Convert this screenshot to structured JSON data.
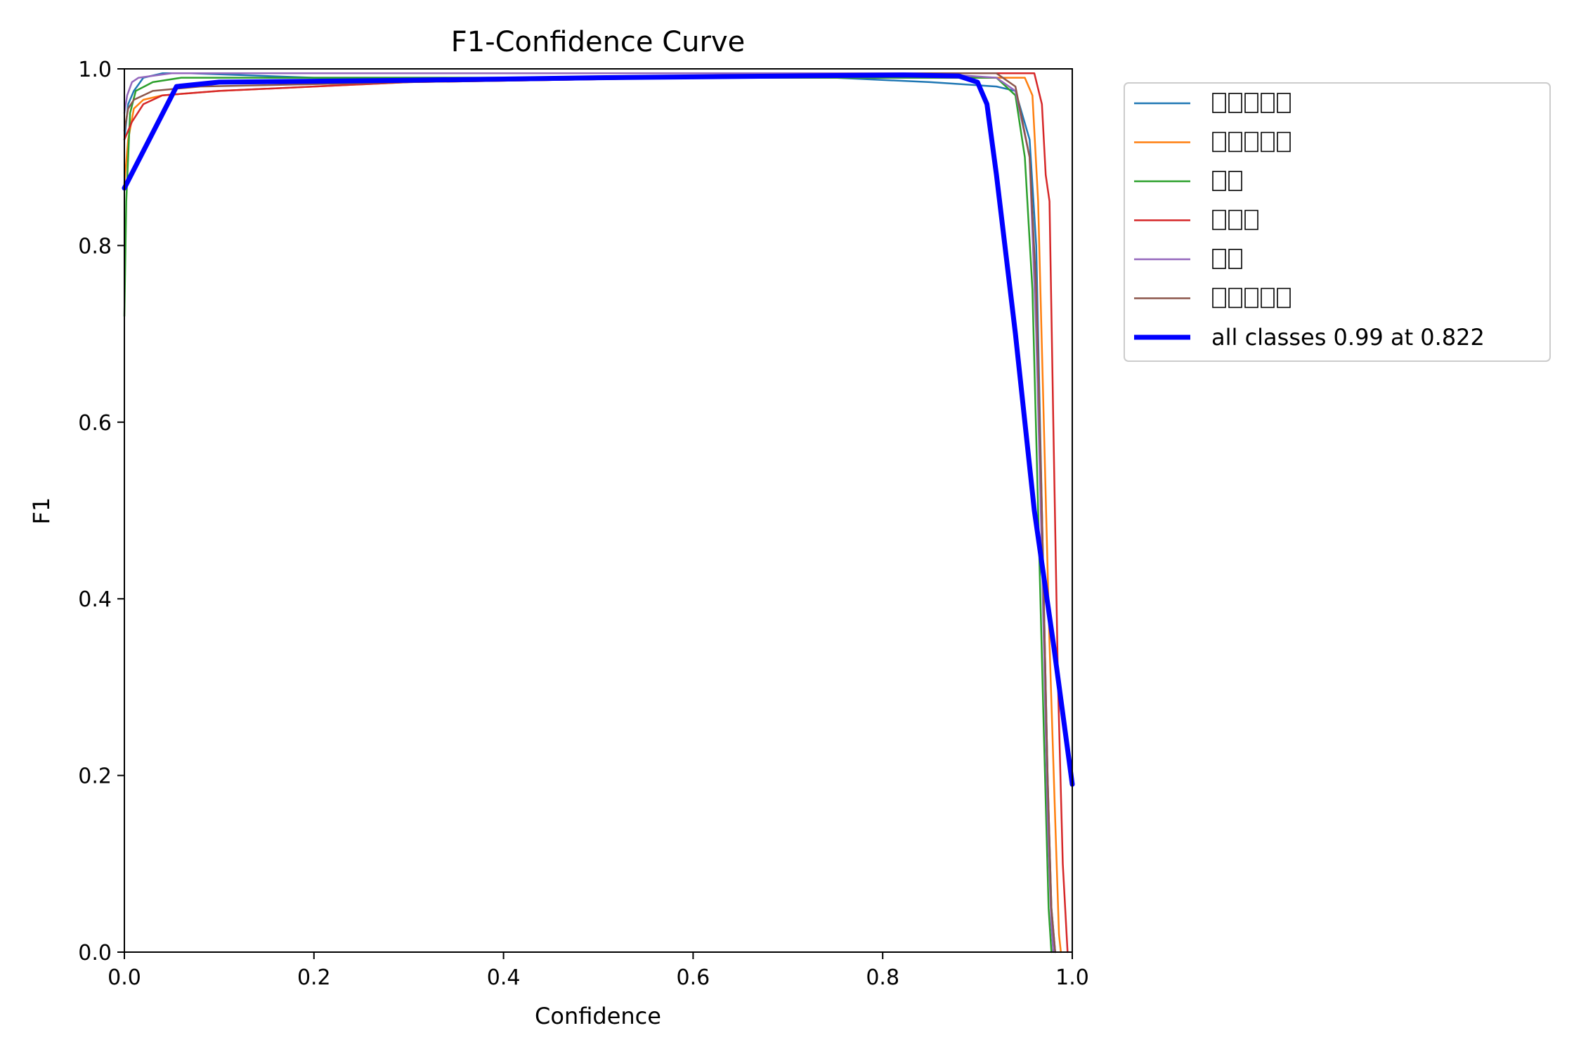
{
  "chart_data": {
    "type": "line",
    "title": "F1-Confidence Curve",
    "xlabel": "Confidence",
    "ylabel": "F1",
    "xlim": [
      0,
      1
    ],
    "ylim": [
      0,
      1
    ],
    "x_ticks": [
      "0.0",
      "0.2",
      "0.4",
      "0.6",
      "0.8",
      "1.0"
    ],
    "y_ticks": [
      "0.0",
      "0.2",
      "0.4",
      "0.6",
      "0.8",
      "1.0"
    ],
    "grid": false,
    "legend_position": "outside-right-top",
    "series": [
      {
        "name": "",
        "color": "#1f77b4",
        "width": "thin",
        "points": [
          [
            0,
            0.92
          ],
          [
            0.004,
            0.96
          ],
          [
            0.01,
            0.975
          ],
          [
            0.02,
            0.99
          ],
          [
            0.04,
            0.995
          ],
          [
            0.07,
            0.995
          ],
          [
            0.2,
            0.99
          ],
          [
            0.5,
            0.99
          ],
          [
            0.75,
            0.99
          ],
          [
            0.85,
            0.985
          ],
          [
            0.92,
            0.98
          ],
          [
            0.94,
            0.975
          ],
          [
            0.955,
            0.92
          ],
          [
            0.962,
            0.8
          ],
          [
            0.968,
            0.5
          ],
          [
            0.974,
            0.2
          ],
          [
            0.978,
            0.05
          ],
          [
            0.982,
            0
          ]
        ]
      },
      {
        "name": "",
        "color": "#ff7f0e",
        "width": "thin",
        "points": [
          [
            0,
            0.87
          ],
          [
            0.004,
            0.92
          ],
          [
            0.01,
            0.955
          ],
          [
            0.02,
            0.965
          ],
          [
            0.04,
            0.97
          ],
          [
            0.1,
            0.975
          ],
          [
            0.3,
            0.985
          ],
          [
            0.6,
            0.99
          ],
          [
            0.85,
            0.99
          ],
          [
            0.95,
            0.99
          ],
          [
            0.958,
            0.97
          ],
          [
            0.964,
            0.85
          ],
          [
            0.97,
            0.6
          ],
          [
            0.976,
            0.35
          ],
          [
            0.982,
            0.15
          ],
          [
            0.986,
            0.02
          ],
          [
            0.988,
            0
          ]
        ]
      },
      {
        "name": "",
        "color": "#2ca02c",
        "width": "thin",
        "points": [
          [
            0,
            0.72
          ],
          [
            0.002,
            0.85
          ],
          [
            0.006,
            0.95
          ],
          [
            0.012,
            0.975
          ],
          [
            0.03,
            0.985
          ],
          [
            0.06,
            0.99
          ],
          [
            0.3,
            0.99
          ],
          [
            0.6,
            0.99
          ],
          [
            0.8,
            0.99
          ],
          [
            0.92,
            0.99
          ],
          [
            0.94,
            0.97
          ],
          [
            0.95,
            0.9
          ],
          [
            0.958,
            0.75
          ],
          [
            0.964,
            0.5
          ],
          [
            0.97,
            0.25
          ],
          [
            0.975,
            0.05
          ],
          [
            0.978,
            0
          ]
        ]
      },
      {
        "name": "",
        "color": "#d62728",
        "width": "thin",
        "points": [
          [
            0,
            0.92
          ],
          [
            0.008,
            0.94
          ],
          [
            0.02,
            0.96
          ],
          [
            0.04,
            0.97
          ],
          [
            0.1,
            0.975
          ],
          [
            0.3,
            0.985
          ],
          [
            0.6,
            0.99
          ],
          [
            0.85,
            0.995
          ],
          [
            0.96,
            0.995
          ],
          [
            0.968,
            0.96
          ],
          [
            0.972,
            0.88
          ],
          [
            0.976,
            0.85
          ],
          [
            0.98,
            0.6
          ],
          [
            0.985,
            0.3
          ],
          [
            0.99,
            0.1
          ],
          [
            0.995,
            0
          ]
        ]
      },
      {
        "name": "",
        "color": "#9467bd",
        "width": "thin",
        "points": [
          [
            0,
            0.95
          ],
          [
            0.003,
            0.97
          ],
          [
            0.008,
            0.985
          ],
          [
            0.015,
            0.99
          ],
          [
            0.05,
            0.995
          ],
          [
            0.3,
            0.995
          ],
          [
            0.6,
            0.995
          ],
          [
            0.85,
            0.995
          ],
          [
            0.92,
            0.99
          ],
          [
            0.94,
            0.975
          ],
          [
            0.955,
            0.9
          ],
          [
            0.962,
            0.7
          ],
          [
            0.968,
            0.45
          ],
          [
            0.974,
            0.15
          ],
          [
            0.978,
            0.03
          ],
          [
            0.98,
            0
          ]
        ]
      },
      {
        "name": "",
        "color": "#8c564b",
        "width": "thin",
        "points": [
          [
            0,
            0.93
          ],
          [
            0.004,
            0.955
          ],
          [
            0.01,
            0.965
          ],
          [
            0.03,
            0.975
          ],
          [
            0.08,
            0.98
          ],
          [
            0.3,
            0.985
          ],
          [
            0.6,
            0.99
          ],
          [
            0.85,
            0.995
          ],
          [
            0.92,
            0.995
          ],
          [
            0.94,
            0.98
          ],
          [
            0.955,
            0.9
          ],
          [
            0.962,
            0.75
          ],
          [
            0.968,
            0.5
          ],
          [
            0.974,
            0.2
          ],
          [
            0.978,
            0.05
          ],
          [
            0.982,
            0
          ]
        ]
      },
      {
        "name": "all classes 0.99 at 0.822",
        "color": "#0000ff",
        "width": "thick",
        "points": [
          [
            0,
            0.865
          ],
          [
            0.055,
            0.98
          ],
          [
            0.1,
            0.985
          ],
          [
            0.3,
            0.987
          ],
          [
            0.5,
            0.99
          ],
          [
            0.7,
            0.992
          ],
          [
            0.822,
            0.993
          ],
          [
            0.88,
            0.992
          ],
          [
            0.9,
            0.985
          ],
          [
            0.91,
            0.96
          ],
          [
            0.92,
            0.88
          ],
          [
            0.94,
            0.7
          ],
          [
            0.96,
            0.5
          ],
          [
            0.98,
            0.35
          ],
          [
            1.0,
            0.19
          ]
        ]
      }
    ]
  }
}
